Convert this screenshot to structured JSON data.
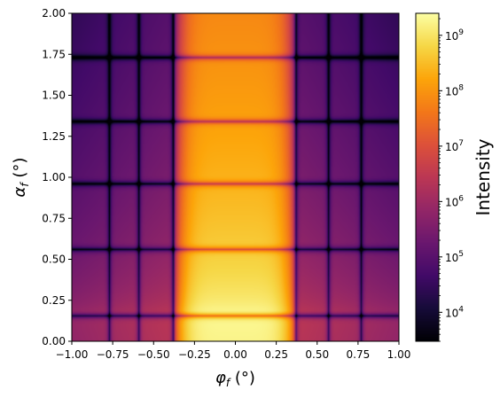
{
  "chart_data": {
    "type": "heatmap",
    "title": "",
    "xlabel": {
      "base": "φ",
      "sub": "f",
      "unit": " (°)"
    },
    "ylabel": {
      "base": "α",
      "sub": "f",
      "unit": " (°)"
    },
    "xlim": [
      -1.0,
      1.0
    ],
    "ylim": [
      0.0,
      2.0
    ],
    "x_ticks": [
      -1.0,
      -0.75,
      -0.5,
      -0.25,
      0.0,
      0.25,
      0.5,
      0.75,
      1.0
    ],
    "x_tick_labels": [
      "−1.00",
      "−0.75",
      "−0.50",
      "−0.25",
      "0.00",
      "0.25",
      "0.50",
      "0.75",
      "1.00"
    ],
    "y_ticks": [
      0.0,
      0.25,
      0.5,
      0.75,
      1.0,
      1.25,
      1.5,
      1.75,
      2.0
    ],
    "y_tick_labels": [
      "0.00",
      "0.25",
      "0.50",
      "0.75",
      "1.00",
      "1.25",
      "1.50",
      "1.75",
      "2.00"
    ],
    "grid": false,
    "colormap": "inferno",
    "colorbar": {
      "label": "Intensity",
      "scale": "log",
      "range": [
        3000,
        2500000000
      ],
      "ticks": [
        {
          "value": 10000,
          "base": "10",
          "exp": "4"
        },
        {
          "value": 100000,
          "base": "10",
          "exp": "5"
        },
        {
          "value": 1000000,
          "base": "10",
          "exp": "6"
        },
        {
          "value": 10000000,
          "base": "10",
          "exp": "7"
        },
        {
          "value": 100000000,
          "base": "10",
          "exp": "8"
        },
        {
          "value": 1000000000,
          "base": "10",
          "exp": "9"
        }
      ]
    },
    "features": {
      "horizontal_minima_alpha": [
        0.155,
        0.56,
        0.96,
        1.34,
        1.73
      ],
      "vertical_minima_phi": [
        -0.77,
        -0.59,
        -0.38,
        0.37,
        0.57,
        0.77
      ],
      "peak": {
        "phi": 0.0,
        "alpha": 0.19,
        "intensity": 2500000000
      }
    }
  }
}
